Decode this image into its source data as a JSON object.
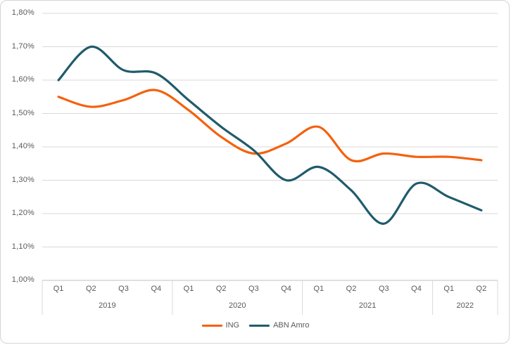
{
  "chart_data": {
    "type": "line",
    "smooth": true,
    "grid": true,
    "legend_position": "bottom",
    "title": "",
    "xlabel": "",
    "ylabel": "",
    "categories": [
      "Q1",
      "Q2",
      "Q3",
      "Q4",
      "Q1",
      "Q2",
      "Q3",
      "Q4",
      "Q1",
      "Q2",
      "Q3",
      "Q4",
      "Q1",
      "Q2"
    ],
    "year_groups": [
      {
        "label": "2019",
        "count": 4
      },
      {
        "label": "2020",
        "count": 4
      },
      {
        "label": "2021",
        "count": 4
      },
      {
        "label": "2022",
        "count": 2
      }
    ],
    "series": [
      {
        "name": "ING",
        "color": "#F4610E",
        "values": [
          1.55,
          1.52,
          1.54,
          1.57,
          1.51,
          1.43,
          1.38,
          1.41,
          1.46,
          1.36,
          1.38,
          1.37,
          1.37,
          1.36
        ]
      },
      {
        "name": "ABN Amro",
        "color": "#1F5B6B",
        "values": [
          1.6,
          1.7,
          1.63,
          1.62,
          1.54,
          1.46,
          1.39,
          1.3,
          1.34,
          1.27,
          1.17,
          1.29,
          1.25,
          1.21
        ]
      }
    ],
    "y_axis": {
      "min": 1.0,
      "max": 1.8,
      "step": 0.1,
      "tick_labels": [
        "1,00%",
        "1,10%",
        "1,20%",
        "1,30%",
        "1,40%",
        "1,50%",
        "1,60%",
        "1,70%",
        "1,80%"
      ]
    }
  },
  "legend": {
    "items": [
      {
        "label": "ING"
      },
      {
        "label": "ABN Amro"
      }
    ]
  },
  "colors": {
    "gridline": "#d9d9d9",
    "axis_line": "#bfbfbf",
    "tick_text": "#595959",
    "frame_border": "#d4d4d4"
  }
}
